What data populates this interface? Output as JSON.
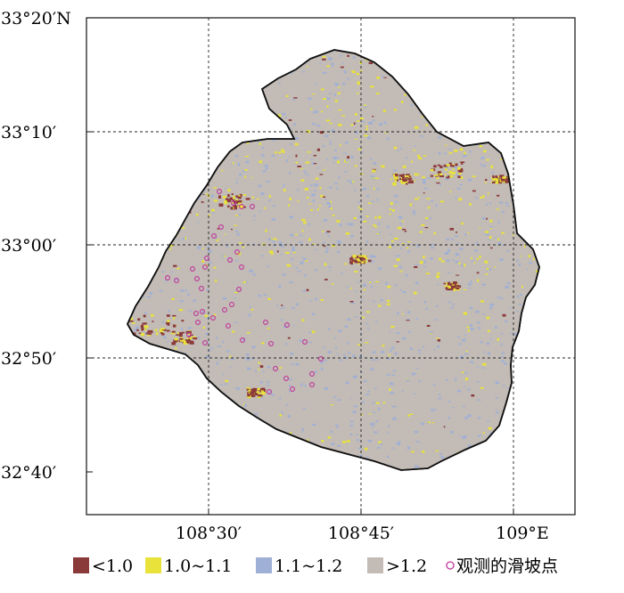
{
  "map": {
    "lat_labels": [
      "33°20′N",
      "33°10′",
      "33°00′",
      "32°50′",
      "32°40′"
    ],
    "lon_labels": [
      "108°30′",
      "108°45′",
      "109°E"
    ],
    "region_fill": "#c2bbb6",
    "outline_color": "#111111"
  },
  "legend": {
    "items": [
      {
        "label": "<1.0",
        "color": "#8b3a3a"
      },
      {
        "label": "1.0~1.1",
        "color": "#e8e23a"
      },
      {
        "label": "1.1~1.2",
        "color": "#9fb0d6"
      },
      {
        "label": ">1.2",
        "color": "#c2bbb6"
      }
    ],
    "point_label": "观测的滑坡点",
    "point_color": "#c0359a"
  }
}
